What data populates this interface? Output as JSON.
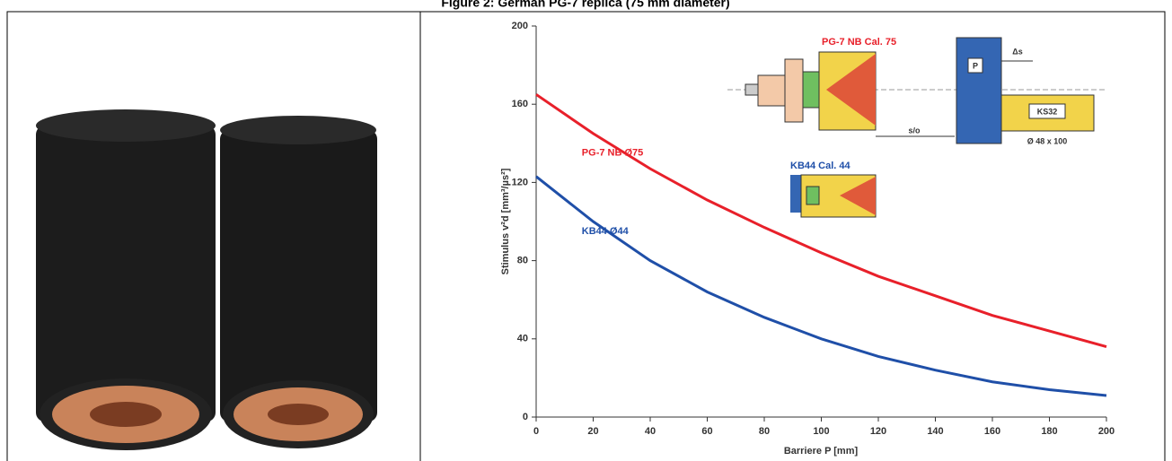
{
  "caption": "Figure 2: German PG-7 replica (75 mm diameter)",
  "chart_data": {
    "type": "line",
    "x_label": "Barriere P [mm]",
    "y_label": "Stimulus v²d [mm³/µs²]",
    "x": [
      0,
      20,
      40,
      60,
      80,
      100,
      120,
      140,
      160,
      180,
      200
    ],
    "series": [
      {
        "name": "PG-7 NB  Ø75",
        "color": "#e8202a",
        "values": [
          165,
          145,
          127,
          111,
          97,
          84,
          72,
          62,
          52,
          44,
          36
        ]
      },
      {
        "name": "KB44  Ø44",
        "color": "#1f4fa8",
        "values": [
          123,
          100,
          80,
          64,
          51,
          40,
          31,
          24,
          18,
          14,
          11
        ]
      }
    ],
    "xlim": [
      0,
      200
    ],
    "xticks": [
      0,
      20,
      40,
      60,
      80,
      100,
      120,
      140,
      160,
      180,
      200
    ],
    "ylim": [
      0,
      200
    ],
    "yticks": [
      0,
      40,
      80,
      120,
      160,
      200
    ],
    "annotations": {
      "pg7": "PG-7 NB  Cal. 75",
      "kb44": "KB44  Cal. 44",
      "plate": "P",
      "target": "KS32",
      "target_size": "Ø 48 x 100",
      "standoff": "s/o",
      "delta": "Δs"
    }
  }
}
